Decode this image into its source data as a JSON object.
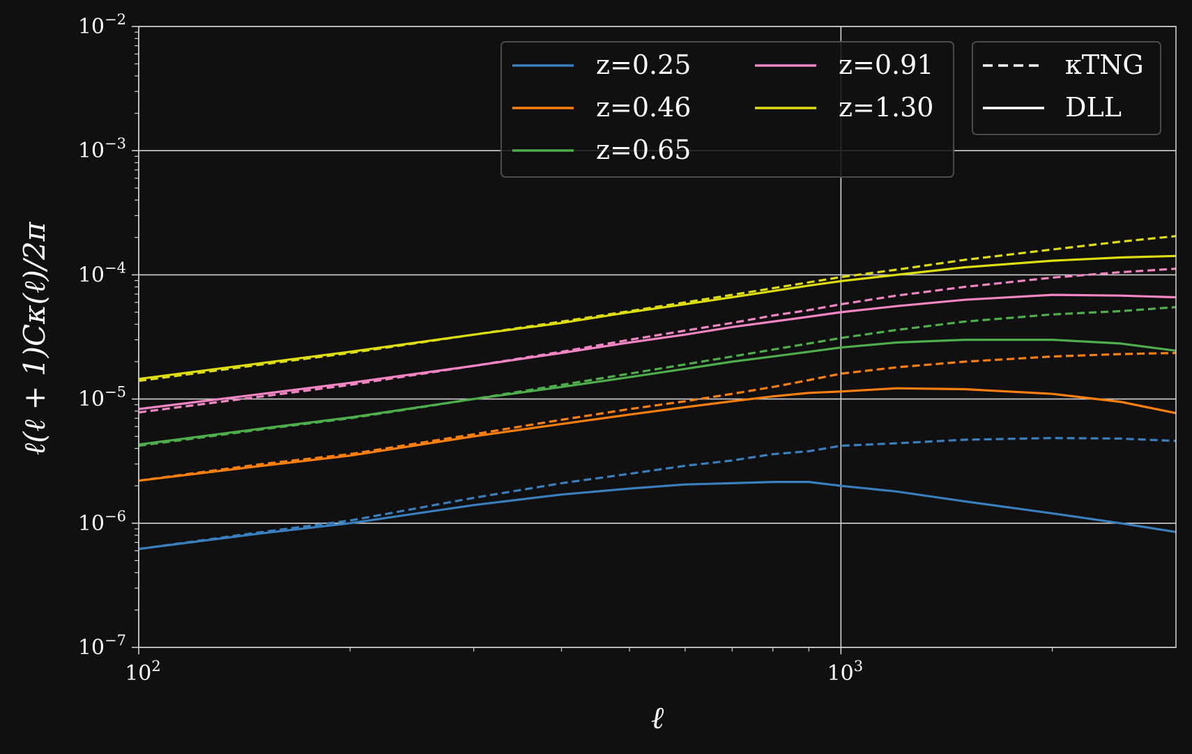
{
  "chart_data": {
    "type": "line",
    "xlabel": "ℓ",
    "ylabel": "ℓ(ℓ + 1)Cκ(ℓ)/2π",
    "xscale": "log",
    "yscale": "log",
    "xlim": [
      100,
      3000
    ],
    "ylim": [
      1e-07,
      0.01
    ],
    "grid": true,
    "x_ticks": [
      {
        "base": "10",
        "exp": "2"
      },
      {
        "base": "10",
        "exp": "3"
      }
    ],
    "y_ticks": [
      {
        "base": "10",
        "exp": "−7"
      },
      {
        "base": "10",
        "exp": "−6"
      },
      {
        "base": "10",
        "exp": "−5"
      },
      {
        "base": "10",
        "exp": "−4"
      },
      {
        "base": "10",
        "exp": "−3"
      },
      {
        "base": "10",
        "exp": "−2"
      }
    ],
    "legend_z": {
      "placement": "top-center",
      "entries": [
        "z=0.25",
        "z=0.46",
        "z=0.65",
        "z=0.91",
        "z=1.30"
      ]
    },
    "legend_style": {
      "placement": "top-right",
      "entries": [
        {
          "label": "κTNG",
          "style": "dashed"
        },
        {
          "label": "DLL",
          "style": "solid"
        }
      ]
    },
    "x": [
      100,
      150,
      200,
      300,
      400,
      500,
      600,
      700,
      800,
      900,
      1000,
      1200,
      1500,
      2000,
      2500,
      3000
    ],
    "series": [
      {
        "name": "z=0.25",
        "color": "#3a7fbd",
        "ktng": [
          6.2e-07,
          8.5e-07,
          1.05e-06,
          1.6e-06,
          2.1e-06,
          2.5e-06,
          2.9e-06,
          3.2e-06,
          3.6e-06,
          3.8e-06,
          4.2e-06,
          4.4e-06,
          4.7e-06,
          4.85e-06,
          4.8e-06,
          4.6e-06
        ],
        "dll": [
          6.2e-07,
          8.3e-07,
          1e-06,
          1.4e-06,
          1.7e-06,
          1.9e-06,
          2.05e-06,
          2.1e-06,
          2.15e-06,
          2.15e-06,
          2e-06,
          1.8e-06,
          1.5e-06,
          1.2e-06,
          1e-06,
          8.5e-07
        ]
      },
      {
        "name": "z=0.46",
        "color": "#ff7f0e",
        "ktng": [
          2.2e-06,
          3e-06,
          3.6e-06,
          5.2e-06,
          6.8e-06,
          8.3e-06,
          9.6e-06,
          1.1e-05,
          1.25e-05,
          1.42e-05,
          1.6e-05,
          1.8e-05,
          2e-05,
          2.2e-05,
          2.3e-05,
          2.35e-05
        ],
        "dll": [
          2.2e-06,
          2.9e-06,
          3.5e-06,
          5e-06,
          6.3e-06,
          7.5e-06,
          8.6e-06,
          9.6e-06,
          1.05e-05,
          1.12e-05,
          1.15e-05,
          1.22e-05,
          1.2e-05,
          1.1e-05,
          9.5e-06,
          7.7e-06
        ]
      },
      {
        "name": "z=0.65",
        "color": "#4fae4c",
        "ktng": [
          4.2e-06,
          5.7e-06,
          7e-06,
          1e-05,
          1.3e-05,
          1.6e-05,
          1.9e-05,
          2.2e-05,
          2.5e-05,
          2.8e-05,
          3.1e-05,
          3.6e-05,
          4.2e-05,
          4.8e-05,
          5.1e-05,
          5.5e-05
        ],
        "dll": [
          4.3e-06,
          5.8e-06,
          7.1e-06,
          1e-05,
          1.25e-05,
          1.5e-05,
          1.75e-05,
          2e-05,
          2.2e-05,
          2.4e-05,
          2.6e-05,
          2.85e-05,
          3e-05,
          3e-05,
          2.8e-05,
          2.45e-05
        ]
      },
      {
        "name": "z=0.91",
        "color": "#f285c2",
        "ktng": [
          7.8e-06,
          1.05e-05,
          1.3e-05,
          1.85e-05,
          2.4e-05,
          3e-05,
          3.55e-05,
          4.1e-05,
          4.7e-05,
          5.2e-05,
          5.8e-05,
          6.8e-05,
          8e-05,
          9.5e-05,
          0.000105,
          0.000112
        ],
        "dll": [
          8.3e-06,
          1.1e-05,
          1.35e-05,
          1.85e-05,
          2.35e-05,
          2.85e-05,
          3.3e-05,
          3.8e-05,
          4.2e-05,
          4.6e-05,
          5e-05,
          5.6e-05,
          6.3e-05,
          6.9e-05,
          6.8e-05,
          6.6e-05
        ]
      },
      {
        "name": "z=1.30",
        "color": "#dddd10",
        "ktng": [
          1.4e-05,
          1.9e-05,
          2.35e-05,
          3.3e-05,
          4.2e-05,
          5.1e-05,
          6e-05,
          6.9e-05,
          7.8e-05,
          8.7e-05,
          9.6e-05,
          0.00011,
          0.000132,
          0.00016,
          0.000185,
          0.000205
        ],
        "dll": [
          1.45e-05,
          1.95e-05,
          2.4e-05,
          3.3e-05,
          4.1e-05,
          5e-05,
          5.8e-05,
          6.6e-05,
          7.4e-05,
          8.2e-05,
          8.9e-05,
          0.0001,
          0.000115,
          0.00013,
          0.000138,
          0.000142
        ]
      }
    ]
  }
}
